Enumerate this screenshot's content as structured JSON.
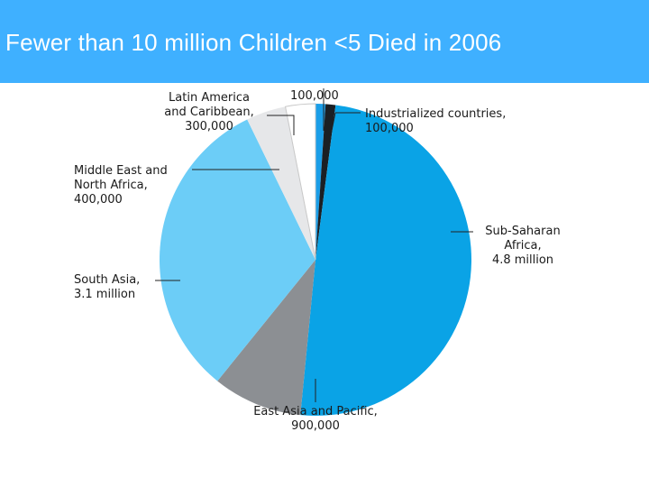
{
  "slide": {
    "title": "Fewer than 10 million Children <5 Died in 2006"
  },
  "chart_data": {
    "type": "pie",
    "title": "",
    "slices": [
      {
        "key": "top",
        "label_lines": [
          "100,000"
        ],
        "value": 100000,
        "color": "#1a9ee8"
      },
      {
        "key": "industrialized",
        "label_lines": [
          "Industrialized countries,",
          "100,000"
        ],
        "value": 100000,
        "color": "#1b1f24"
      },
      {
        "key": "ssa",
        "label_lines": [
          "Sub-Saharan",
          "Africa,",
          "4.8 million"
        ],
        "value": 4800000,
        "color": "#0aa3e6"
      },
      {
        "key": "eap",
        "label_lines": [
          "East Asia and Pacific,",
          "900,000"
        ],
        "value": 900000,
        "color": "#8c8f93"
      },
      {
        "key": "sa",
        "label_lines": [
          "South Asia,",
          "3.1 million"
        ],
        "value": 3100000,
        "color": "#6ccdf7"
      },
      {
        "key": "mena",
        "label_lines": [
          "Middle East and",
          "North Africa,",
          "400,000"
        ],
        "value": 400000,
        "color": "#e6e7e9"
      },
      {
        "key": "lac",
        "label_lines": [
          "Latin America",
          "and Caribbean,",
          "300,000"
        ],
        "value": 300000,
        "color": "#ffffff"
      }
    ]
  }
}
